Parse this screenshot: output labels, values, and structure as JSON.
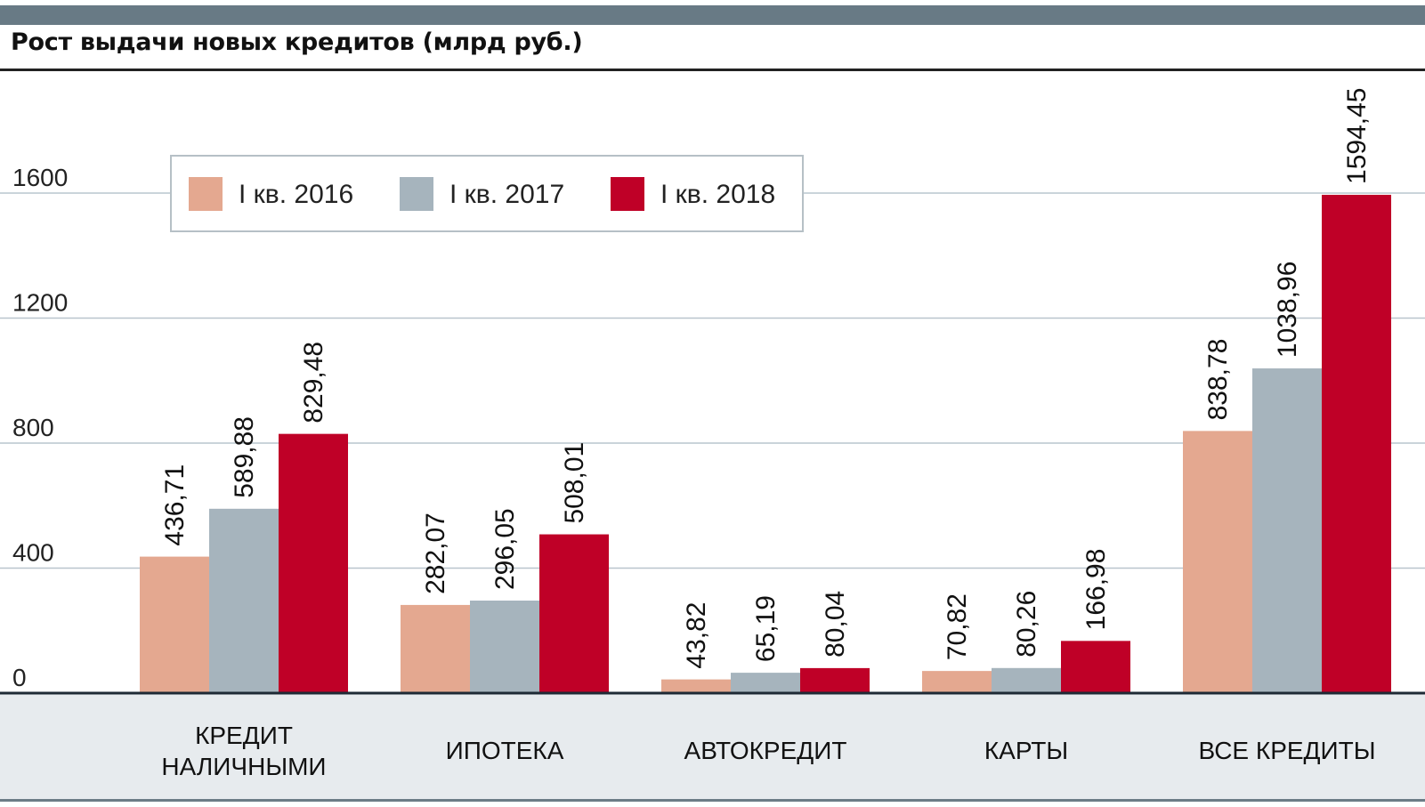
{
  "title": "Рост выдачи новых кредитов (млрд руб.)",
  "colors": {
    "topbar": "#687a85",
    "gridline": "#b9c5cd",
    "category_band": "#e7ebee",
    "baseline": "#1e2a35"
  },
  "chart_data": {
    "type": "bar",
    "title": "Рост выдачи новых кредитов (млрд руб.)",
    "xlabel": "",
    "ylabel": "",
    "ylim": [
      0,
      1600
    ],
    "yticks": [
      0,
      400,
      800,
      1200,
      1600
    ],
    "ytick_labels": [
      "0",
      "400",
      "800",
      "1200",
      "1600"
    ],
    "grid": true,
    "legend_position": "top-left",
    "categories": [
      [
        "КРЕДИТ",
        "НАЛИЧНЫМИ"
      ],
      [
        "ИПОТЕКА"
      ],
      [
        "АВТОКРЕДИТ"
      ],
      [
        "КАРТЫ"
      ],
      [
        "ВСЕ КРЕДИТЫ"
      ]
    ],
    "series": [
      {
        "name": "I кв. 2016",
        "color": "#e4a890",
        "values": [
          436.71,
          282.07,
          43.82,
          70.82,
          838.78
        ],
        "labels": [
          "436,71",
          "282,07",
          "43,82",
          "70,82",
          "838,78"
        ]
      },
      {
        "name": "I кв. 2017",
        "color": "#a6b4bd",
        "values": [
          589.88,
          296.05,
          65.19,
          80.26,
          1038.96
        ],
        "labels": [
          "589,88",
          "296,05",
          "65,19",
          "80,26",
          "1038,96"
        ]
      },
      {
        "name": "I кв. 2018",
        "color": "#bf0027",
        "values": [
          829.48,
          508.01,
          80.04,
          166.98,
          1594.45
        ],
        "labels": [
          "829,48",
          "508,01",
          "80,04",
          "166,98",
          "1594,45"
        ]
      }
    ]
  }
}
